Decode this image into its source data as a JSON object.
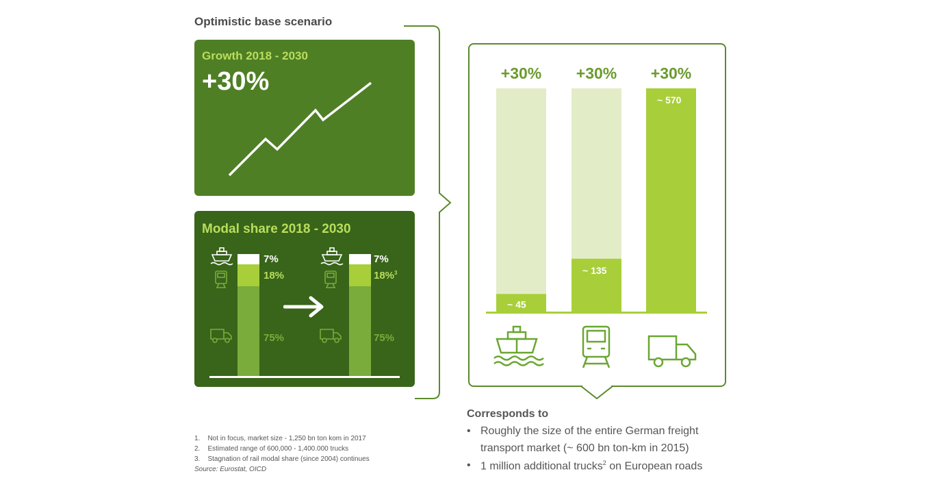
{
  "heading": "Optimistic base scenario",
  "growth": {
    "label": "Growth 2018 - 2030",
    "value": "+30%"
  },
  "modal": {
    "label": "Modal share 2018 - 2030",
    "before": {
      "ship": "7%",
      "rail": "18%",
      "truck": "75%"
    },
    "after": {
      "ship": "7%",
      "rail": "18%",
      "rail_sup": "3",
      "truck": "75%"
    }
  },
  "chart_data": {
    "type": "bar",
    "categories": [
      "ship",
      "rail",
      "truck"
    ],
    "top_labels": [
      "+30%",
      "+30%",
      "+30%"
    ],
    "values": [
      45,
      135,
      570
    ],
    "value_labels": [
      "~ 45",
      "~ 135",
      "~ 570"
    ],
    "ylim": [
      0,
      570
    ],
    "icons": [
      "ship-icon",
      "train-icon",
      "truck-icon"
    ],
    "colors": {
      "filled": "#a8cf39",
      "background": "#e2edc8",
      "baseline": "#a8cf39"
    }
  },
  "corresponds": {
    "title": "Corresponds to",
    "bullet1_line1": "Roughly the size of the entire German freight",
    "bullet1_line2": "transport market (~ 600 bn ton-km in 2015)",
    "bullet2_pre": "1 million additional trucks",
    "bullet2_sup": "2",
    "bullet2_post": " on European roads"
  },
  "footnotes": {
    "f1": "1.    Not in focus, market size - 1,250 bn ton kom in 2017",
    "f2": "2.    Estimated range of 600,000 - 1,400.000 trucks",
    "f3": "3.    Stagnation of rail modal share (since 2004) continues",
    "source": "Source: Eurostat, OICD"
  }
}
